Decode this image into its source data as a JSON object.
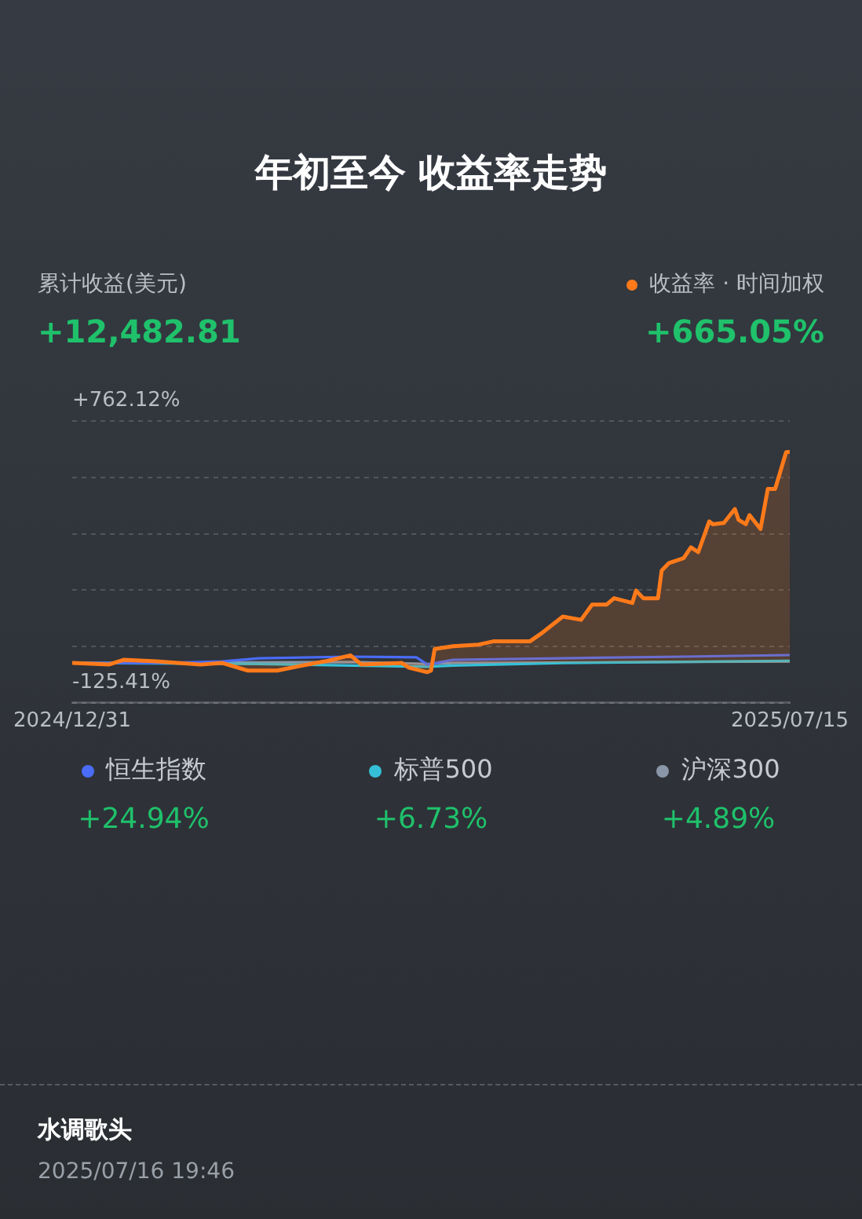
{
  "chart_data": {
    "type": "line",
    "title": "年初至今 收益率走势",
    "series": [
      {
        "name": "收益率 · 时间加权",
        "type": "area",
        "color": "#ff7a1a",
        "x": [
          "2024-12-31",
          "2025-01-10",
          "2025-01-14",
          "2025-01-23",
          "2025-02-04",
          "2025-02-10",
          "2025-02-17",
          "2025-02-25",
          "2025-03-03",
          "2025-03-10",
          "2025-03-17",
          "2025-03-20",
          "2025-03-31",
          "2025-04-02",
          "2025-04-07",
          "2025-04-08",
          "2025-04-09",
          "2025-04-14",
          "2025-04-21",
          "2025-04-25",
          "2025-05-05",
          "2025-05-08",
          "2025-05-14",
          "2025-05-19",
          "2025-05-22",
          "2025-05-26",
          "2025-05-28",
          "2025-06-02",
          "2025-06-03",
          "2025-06-05",
          "2025-06-09",
          "2025-06-10",
          "2025-06-12",
          "2025-06-16",
          "2025-06-18",
          "2025-06-20",
          "2025-06-23",
          "2025-06-24",
          "2025-06-27",
          "2025-06-30",
          "2025-07-01",
          "2025-07-03",
          "2025-07-04",
          "2025-07-07",
          "2025-07-09",
          "2025-07-11",
          "2025-07-14",
          "2025-07-15"
        ],
        "values": [
          0,
          -5,
          10,
          5,
          -5,
          0,
          -24,
          -24,
          -10,
          5,
          24,
          -5,
          0,
          -15,
          -29,
          -24,
          44,
          53,
          58,
          68,
          68,
          92,
          146,
          136,
          184,
          184,
          204,
          189,
          228,
          204,
          204,
          291,
          315,
          330,
          364,
          349,
          446,
          437,
          441,
          485,
          451,
          437,
          466,
          422,
          548,
          548,
          664,
          665.05
        ]
      },
      {
        "name": "恒生指数",
        "color": "#4a6cf7",
        "x": [
          "2024-12-31",
          "2025-01-23",
          "2025-02-10",
          "2025-02-20",
          "2025-03-17",
          "2025-04-04",
          "2025-04-07",
          "2025-04-14",
          "2025-05-14",
          "2025-06-16",
          "2025-07-15"
        ],
        "values": [
          0,
          0,
          5,
          15,
          20,
          18,
          -5,
          10,
          15,
          20,
          24.94
        ]
      },
      {
        "name": "标普500",
        "color": "#35c0d8",
        "x": [
          "2024-12-31",
          "2025-02-20",
          "2025-04-07",
          "2025-04-14",
          "2025-05-14",
          "2025-07-15"
        ],
        "values": [
          0,
          -3,
          -12,
          -8,
          0,
          6.73
        ]
      },
      {
        "name": "沪深300",
        "color": "#8a97a8",
        "x": [
          "2024-12-31",
          "2025-03-17",
          "2025-04-07",
          "2025-04-14",
          "2025-07-15"
        ],
        "values": [
          0,
          3,
          -3,
          0,
          4.89
        ]
      }
    ],
    "xlim": [
      "2024-12-31",
      "2025-07-15"
    ],
    "xticks": [
      {
        "value": "2024-12-31",
        "label": "2024/12/31"
      },
      {
        "value": "2025-07-15",
        "label": "2025/07/15"
      }
    ],
    "ylim": [
      -125.41,
      762.12
    ],
    "yticks": [
      {
        "value": -125.41,
        "label": "-125.41%"
      },
      {
        "value": 52.1,
        "label": null
      },
      {
        "value": 229.6,
        "label": null
      },
      {
        "value": 407.11,
        "label": null
      },
      {
        "value": 584.61,
        "label": null
      },
      {
        "value": 762.12,
        "label": "+762.12%"
      }
    ],
    "grid": "y",
    "legend": "top right",
    "marker": "none",
    "line_style": "solid",
    "annotations": [
      "累计收益(美元)",
      "+12,482.81",
      "+665.05%",
      "+24.94%",
      "+6.73%",
      "+4.89%",
      "水调歌头",
      "2025/07/16 19:46"
    ]
  }
}
